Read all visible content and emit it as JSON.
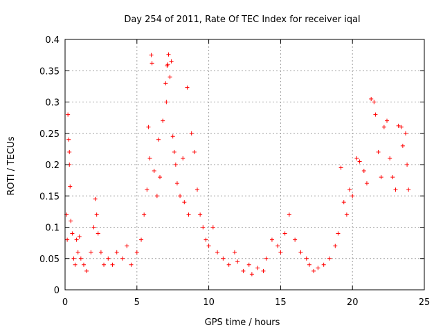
{
  "chart_data": {
    "type": "scatter",
    "title": "Day 254 of 2011, Rate Of TEC Index for receiver iqal",
    "xlabel": "GPS time / hours",
    "ylabel": "ROTI / TECUs",
    "xlim": [
      0,
      25
    ],
    "ylim": [
      0,
      0.4
    ],
    "xticks": [
      0,
      5,
      10,
      15,
      20,
      25
    ],
    "xtick_labels": [
      "0",
      "5",
      "10",
      "15",
      "20",
      "25"
    ],
    "yticks": [
      0,
      0.05,
      0.1,
      0.15,
      0.2,
      0.25,
      0.3,
      0.35,
      0.4
    ],
    "ytick_labels": [
      "0",
      "0.05",
      "0.1",
      "0.15",
      "0.2",
      "0.25",
      "0.3",
      "0.35",
      "0.4"
    ],
    "grid": true,
    "marker": "+",
    "marker_color": "#ff0000",
    "series": [
      {
        "name": "ROTI",
        "points": [
          [
            0.1,
            0.12
          ],
          [
            0.15,
            0.08
          ],
          [
            0.2,
            0.28
          ],
          [
            0.25,
            0.24
          ],
          [
            0.3,
            0.22
          ],
          [
            0.3,
            0.2
          ],
          [
            0.35,
            0.165
          ],
          [
            0.4,
            0.11
          ],
          [
            0.5,
            0.09
          ],
          [
            0.6,
            0.05
          ],
          [
            0.7,
            0.04
          ],
          [
            0.8,
            0.08
          ],
          [
            0.9,
            0.06
          ],
          [
            1.0,
            0.085
          ],
          [
            1.1,
            0.05
          ],
          [
            1.3,
            0.04
          ],
          [
            1.5,
            0.03
          ],
          [
            1.8,
            0.06
          ],
          [
            2.0,
            0.1
          ],
          [
            2.1,
            0.145
          ],
          [
            2.2,
            0.12
          ],
          [
            2.3,
            0.09
          ],
          [
            2.5,
            0.06
          ],
          [
            2.7,
            0.04
          ],
          [
            3.0,
            0.05
          ],
          [
            3.3,
            0.04
          ],
          [
            3.6,
            0.06
          ],
          [
            4.0,
            0.05
          ],
          [
            4.3,
            0.07
          ],
          [
            4.6,
            0.04
          ],
          [
            5.0,
            0.06
          ],
          [
            5.3,
            0.08
          ],
          [
            5.5,
            0.12
          ],
          [
            5.7,
            0.16
          ],
          [
            5.8,
            0.26
          ],
          [
            5.9,
            0.21
          ],
          [
            6.0,
            0.375
          ],
          [
            6.05,
            0.362
          ],
          [
            6.2,
            0.19
          ],
          [
            6.4,
            0.15
          ],
          [
            6.5,
            0.24
          ],
          [
            6.6,
            0.18
          ],
          [
            6.8,
            0.27
          ],
          [
            7.0,
            0.33
          ],
          [
            7.05,
            0.3
          ],
          [
            7.1,
            0.358
          ],
          [
            7.15,
            0.36
          ],
          [
            7.2,
            0.376
          ],
          [
            7.3,
            0.34
          ],
          [
            7.4,
            0.365
          ],
          [
            7.5,
            0.245
          ],
          [
            7.6,
            0.22
          ],
          [
            7.7,
            0.2
          ],
          [
            7.8,
            0.17
          ],
          [
            8.0,
            0.15
          ],
          [
            8.2,
            0.21
          ],
          [
            8.3,
            0.14
          ],
          [
            8.5,
            0.323
          ],
          [
            8.6,
            0.12
          ],
          [
            8.8,
            0.25
          ],
          [
            9.0,
            0.22
          ],
          [
            9.2,
            0.16
          ],
          [
            9.4,
            0.12
          ],
          [
            9.6,
            0.1
          ],
          [
            9.8,
            0.08
          ],
          [
            10.0,
            0.07
          ],
          [
            10.3,
            0.1
          ],
          [
            10.6,
            0.06
          ],
          [
            11.0,
            0.05
          ],
          [
            11.4,
            0.04
          ],
          [
            11.8,
            0.06
          ],
          [
            12.0,
            0.045
          ],
          [
            12.4,
            0.03
          ],
          [
            12.8,
            0.04
          ],
          [
            13.0,
            0.025
          ],
          [
            13.4,
            0.035
          ],
          [
            13.8,
            0.03
          ],
          [
            14.0,
            0.05
          ],
          [
            14.4,
            0.08
          ],
          [
            14.8,
            0.07
          ],
          [
            15.0,
            0.06
          ],
          [
            15.3,
            0.09
          ],
          [
            15.6,
            0.12
          ],
          [
            16.0,
            0.08
          ],
          [
            16.4,
            0.06
          ],
          [
            16.8,
            0.05
          ],
          [
            17.0,
            0.04
          ],
          [
            17.3,
            0.03
          ],
          [
            17.6,
            0.035
          ],
          [
            18.0,
            0.04
          ],
          [
            18.4,
            0.05
          ],
          [
            18.8,
            0.07
          ],
          [
            19.0,
            0.09
          ],
          [
            19.2,
            0.195
          ],
          [
            19.4,
            0.14
          ],
          [
            19.6,
            0.12
          ],
          [
            19.8,
            0.16
          ],
          [
            20.0,
            0.15
          ],
          [
            20.3,
            0.21
          ],
          [
            20.5,
            0.205
          ],
          [
            20.8,
            0.19
          ],
          [
            21.0,
            0.17
          ],
          [
            21.3,
            0.305
          ],
          [
            21.5,
            0.3
          ],
          [
            21.6,
            0.28
          ],
          [
            21.8,
            0.22
          ],
          [
            22.0,
            0.18
          ],
          [
            22.2,
            0.26
          ],
          [
            22.4,
            0.27
          ],
          [
            22.6,
            0.21
          ],
          [
            22.8,
            0.18
          ],
          [
            23.0,
            0.16
          ],
          [
            23.2,
            0.262
          ],
          [
            23.4,
            0.26
          ],
          [
            23.5,
            0.23
          ],
          [
            23.7,
            0.25
          ],
          [
            23.8,
            0.2
          ],
          [
            23.9,
            0.16
          ]
        ]
      }
    ]
  }
}
